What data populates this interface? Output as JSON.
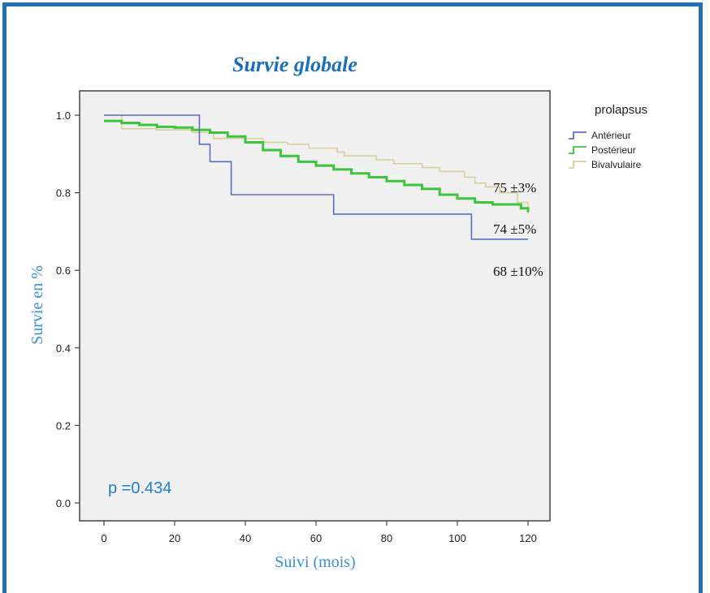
{
  "chart_data": {
    "type": "line",
    "title": "Survie globale",
    "xlabel": "Suivi (mois)",
    "ylabel": "Survie en %",
    "xlim": [
      0,
      120
    ],
    "ylim": [
      0,
      1.0
    ],
    "x_ticks": [
      "0",
      "20",
      "40",
      "60",
      "80",
      "100",
      "120"
    ],
    "y_ticks": [
      "0.0",
      "0.2",
      "0.4",
      "0.6",
      "0.8",
      "1.0"
    ],
    "grid": false,
    "legend_title": "prolapsus",
    "legend_position": "right-outside",
    "p_value": "p =0.434",
    "annotations": [
      "75 ±3%",
      "74 ±5%",
      "68 ±10%"
    ],
    "series": [
      {
        "name": "Antérieur",
        "color": "#5b6ec4",
        "step": true,
        "x": [
          0,
          27,
          27,
          30,
          30,
          36,
          36,
          65,
          65,
          104,
          104,
          120
        ],
        "y": [
          1.0,
          1.0,
          0.925,
          0.925,
          0.88,
          0.88,
          0.795,
          0.795,
          0.745,
          0.745,
          0.68,
          0.68
        ]
      },
      {
        "name": "Postérieur",
        "color": "#3cc43c",
        "step": true,
        "x": [
          0,
          5,
          10,
          15,
          20,
          25,
          30,
          35,
          40,
          45,
          50,
          55,
          60,
          65,
          70,
          75,
          80,
          85,
          90,
          95,
          100,
          105,
          110,
          115,
          118,
          120
        ],
        "y": [
          0.985,
          0.98,
          0.975,
          0.97,
          0.968,
          0.962,
          0.955,
          0.945,
          0.93,
          0.91,
          0.895,
          0.88,
          0.87,
          0.86,
          0.85,
          0.84,
          0.83,
          0.82,
          0.81,
          0.795,
          0.785,
          0.775,
          0.77,
          0.77,
          0.76,
          0.75
        ]
      },
      {
        "name": "Bivalvulaire",
        "color": "#d8cf9a",
        "step": true,
        "x": [
          0,
          5,
          15,
          25,
          31,
          45,
          52,
          58,
          66,
          68,
          77,
          82,
          90,
          95,
          102,
          105,
          108,
          112,
          117,
          120
        ],
        "y": [
          1.0,
          0.965,
          0.962,
          0.955,
          0.94,
          0.93,
          0.925,
          0.915,
          0.905,
          0.895,
          0.885,
          0.875,
          0.865,
          0.855,
          0.84,
          0.825,
          0.815,
          0.8,
          0.775,
          0.745
        ]
      }
    ]
  }
}
